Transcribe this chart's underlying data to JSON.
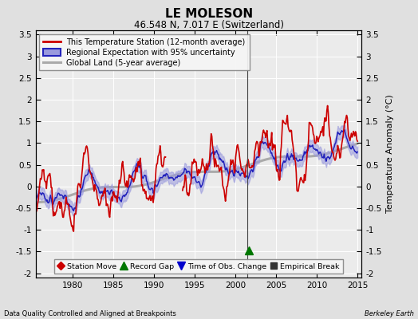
{
  "title": "LE MOLESON",
  "subtitle": "46.548 N, 7.017 E (Switzerland)",
  "ylabel": "Temperature Anomaly (°C)",
  "xlim": [
    1975.5,
    2015.5
  ],
  "ylim": [
    -2.1,
    3.6
  ],
  "yticks": [
    -2,
    -1.5,
    -1,
    -0.5,
    0,
    0.5,
    1,
    1.5,
    2,
    2.5,
    3,
    3.5
  ],
  "xticks": [
    1980,
    1985,
    1990,
    1995,
    2000,
    2005,
    2010,
    2015
  ],
  "bg_color": "#e0e0e0",
  "plot_bg_color": "#ebebeb",
  "grid_color": "#ffffff",
  "station_line_color": "#cc0000",
  "regional_line_color": "#2222bb",
  "regional_fill_color": "#9999dd",
  "global_line_color": "#aaaaaa",
  "footer_left": "Data Quality Controlled and Aligned at Breakpoints",
  "footer_right": "Berkeley Earth",
  "legend_labels": [
    "This Temperature Station (12-month average)",
    "Regional Expectation with 95% uncertainty",
    "Global Land (5-year average)"
  ],
  "marker_legend": [
    {
      "label": "Station Move",
      "marker": "D",
      "color": "#cc0000"
    },
    {
      "label": "Record Gap",
      "marker": "^",
      "color": "#007700"
    },
    {
      "label": "Time of Obs. Change",
      "marker": "v",
      "color": "#0000cc"
    },
    {
      "label": "Empirical Break",
      "marker": "s",
      "color": "#333333"
    }
  ],
  "record_gap_x": 2001.7,
  "record_gap_y": -1.48,
  "vertical_line_x": 2001.5
}
